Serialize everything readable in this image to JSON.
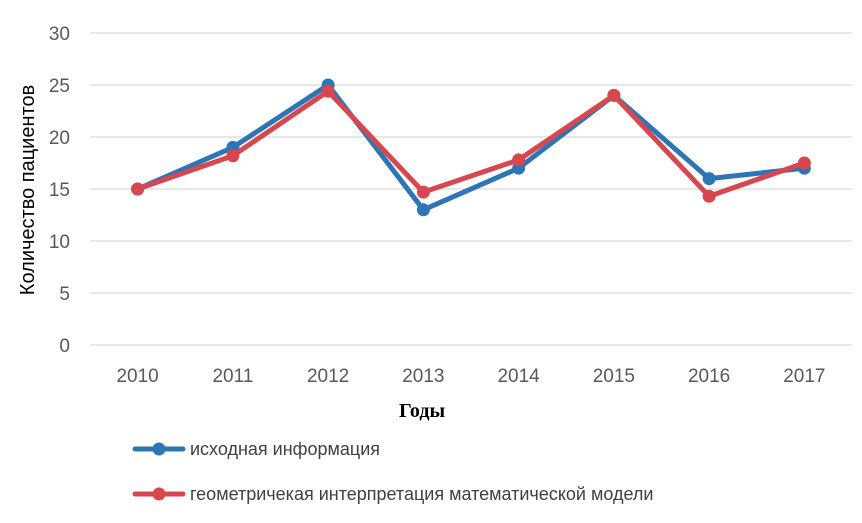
{
  "chart_data": {
    "type": "line",
    "xlabel": "Годы",
    "ylabel": "Количество пациентов",
    "categories": [
      "2010",
      "2011",
      "2012",
      "2013",
      "2014",
      "2015",
      "2016",
      "2017"
    ],
    "ylim": [
      0,
      30
    ],
    "yticks": [
      0,
      5,
      10,
      15,
      20,
      25,
      30
    ],
    "grid": true,
    "legend_position": "bottom",
    "series": [
      {
        "name": "исходная информация",
        "color": "#2e75b6",
        "values": [
          15,
          19,
          25,
          13,
          17,
          24,
          16,
          17
        ]
      },
      {
        "name": "геометричекая интерпретация математической модели",
        "color": "#d6474f",
        "values": [
          15,
          18.2,
          24.4,
          14.7,
          17.8,
          24,
          14.3,
          17.5
        ]
      }
    ]
  }
}
